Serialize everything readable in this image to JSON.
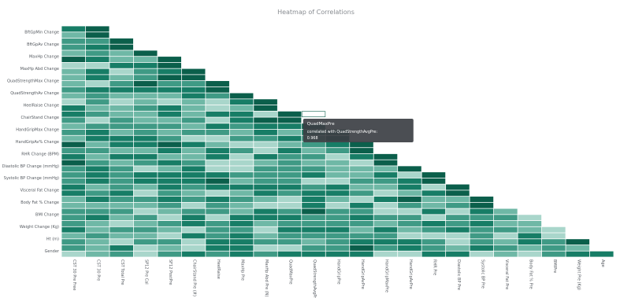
{
  "chart_data": {
    "type": "heatmap",
    "title": "Heatmap of Correlations",
    "rows": [
      "BftGpMin Change",
      "BftGpAv Change",
      "MaxHp Change",
      "MaxHp Abd Change",
      "QuadStrengthMax Change",
      "QuadStrengthAv Change",
      "HeelRaise Change",
      "ChairStand Change",
      "HandGripMax Change",
      "HandGripAv% Change",
      "RHR Change (BPM)",
      "Diastolic BP Change (mmHg)",
      "Systolic BP Change (mmHg)",
      "Visceral Fat Change",
      "Body Fat % Change",
      "BMI Change",
      "Weight Change (Kg)",
      "Ht (m)",
      "Gender"
    ],
    "columns": [
      "CST 30 Pre Free",
      "CST 30 Pre",
      "CST Total Pre",
      "SP12 Pre Cal",
      "SF12 PostPre",
      "ChairStand Pre (#)",
      "HeelRaise",
      "MaxHp Pre",
      "MaxHp Abd Pre (N)",
      "QuadMaxPre",
      "QuadStrengthAvgPre",
      "HandGripPre",
      "HandGripAvPre",
      "HandGripMaxPre",
      "HandGripAvPre",
      "RHR Pre",
      "Diastolic BP Pre",
      "Systolic BP Pre",
      "Visceral Fat Pre",
      "Body Fat % Pre",
      "BMIPre",
      "Weight Pre (Kg)",
      "Age"
    ],
    "shape": "lower-triangular",
    "cell_values": "printed in each cell, not legible at this resolution",
    "colorscale": [
      "#e8f4f1",
      "#a9d6cb",
      "#6fb8a6",
      "#3f9a85",
      "#177d66",
      "#0b5f4b"
    ],
    "value_range": [
      -1,
      1
    ],
    "hover": {
      "title": "QuadMaxPre",
      "text": "correlated with QuadStrengthAvgPre:",
      "value": "0.968"
    }
  }
}
